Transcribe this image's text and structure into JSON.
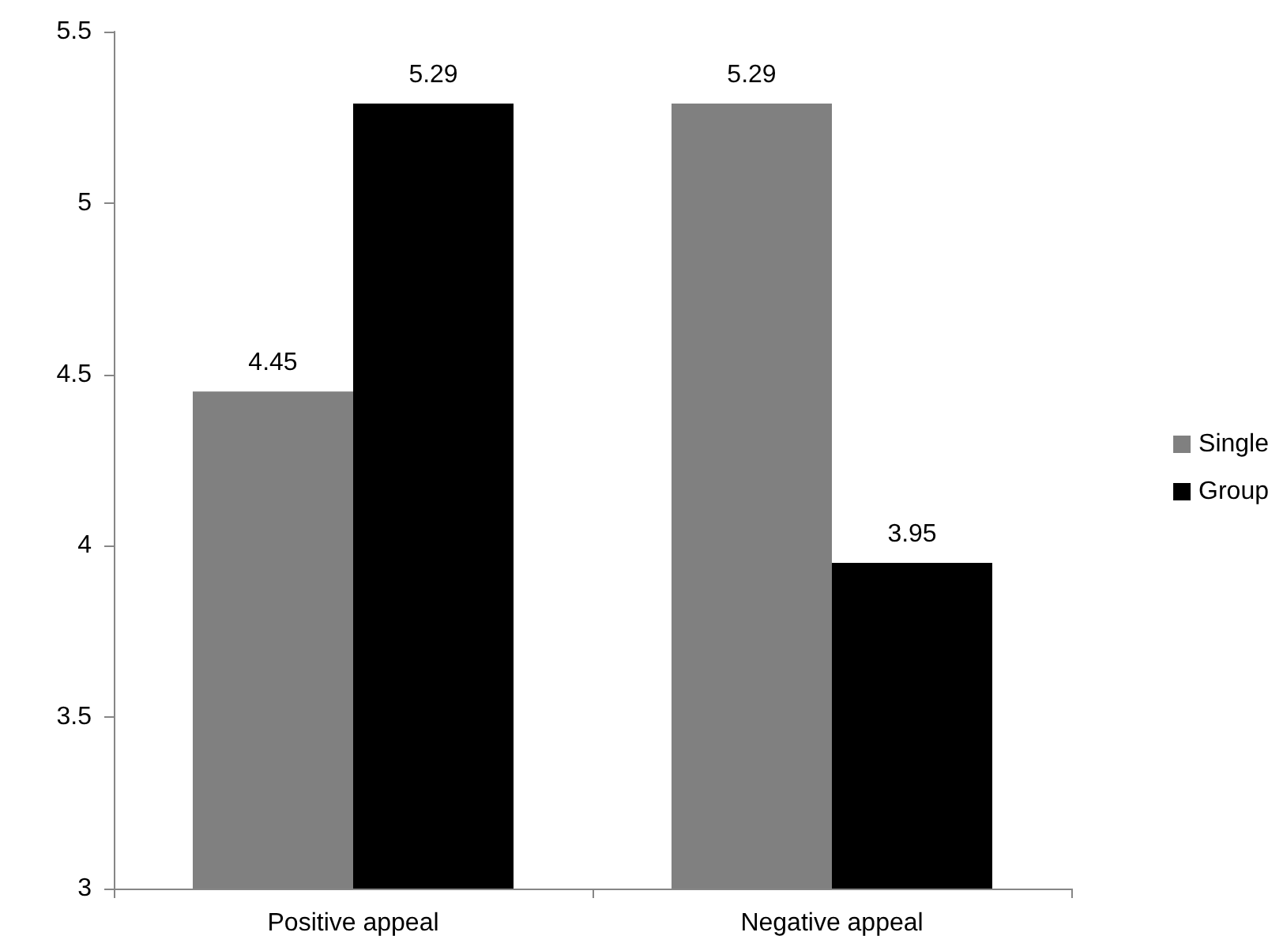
{
  "chart_data": {
    "type": "bar",
    "categories": [
      "Positive appeal",
      "Negative appeal"
    ],
    "series": [
      {
        "name": "Single",
        "color": "#808080",
        "values": [
          4.45,
          5.29
        ]
      },
      {
        "name": "Group",
        "color": "#000000",
        "values": [
          5.29,
          3.95
        ]
      }
    ],
    "ylim": [
      3,
      5.5
    ],
    "yticks": [
      3,
      3.5,
      4,
      4.5,
      5,
      5.5
    ],
    "grid": false,
    "legend": "right",
    "data_labels": true
  }
}
